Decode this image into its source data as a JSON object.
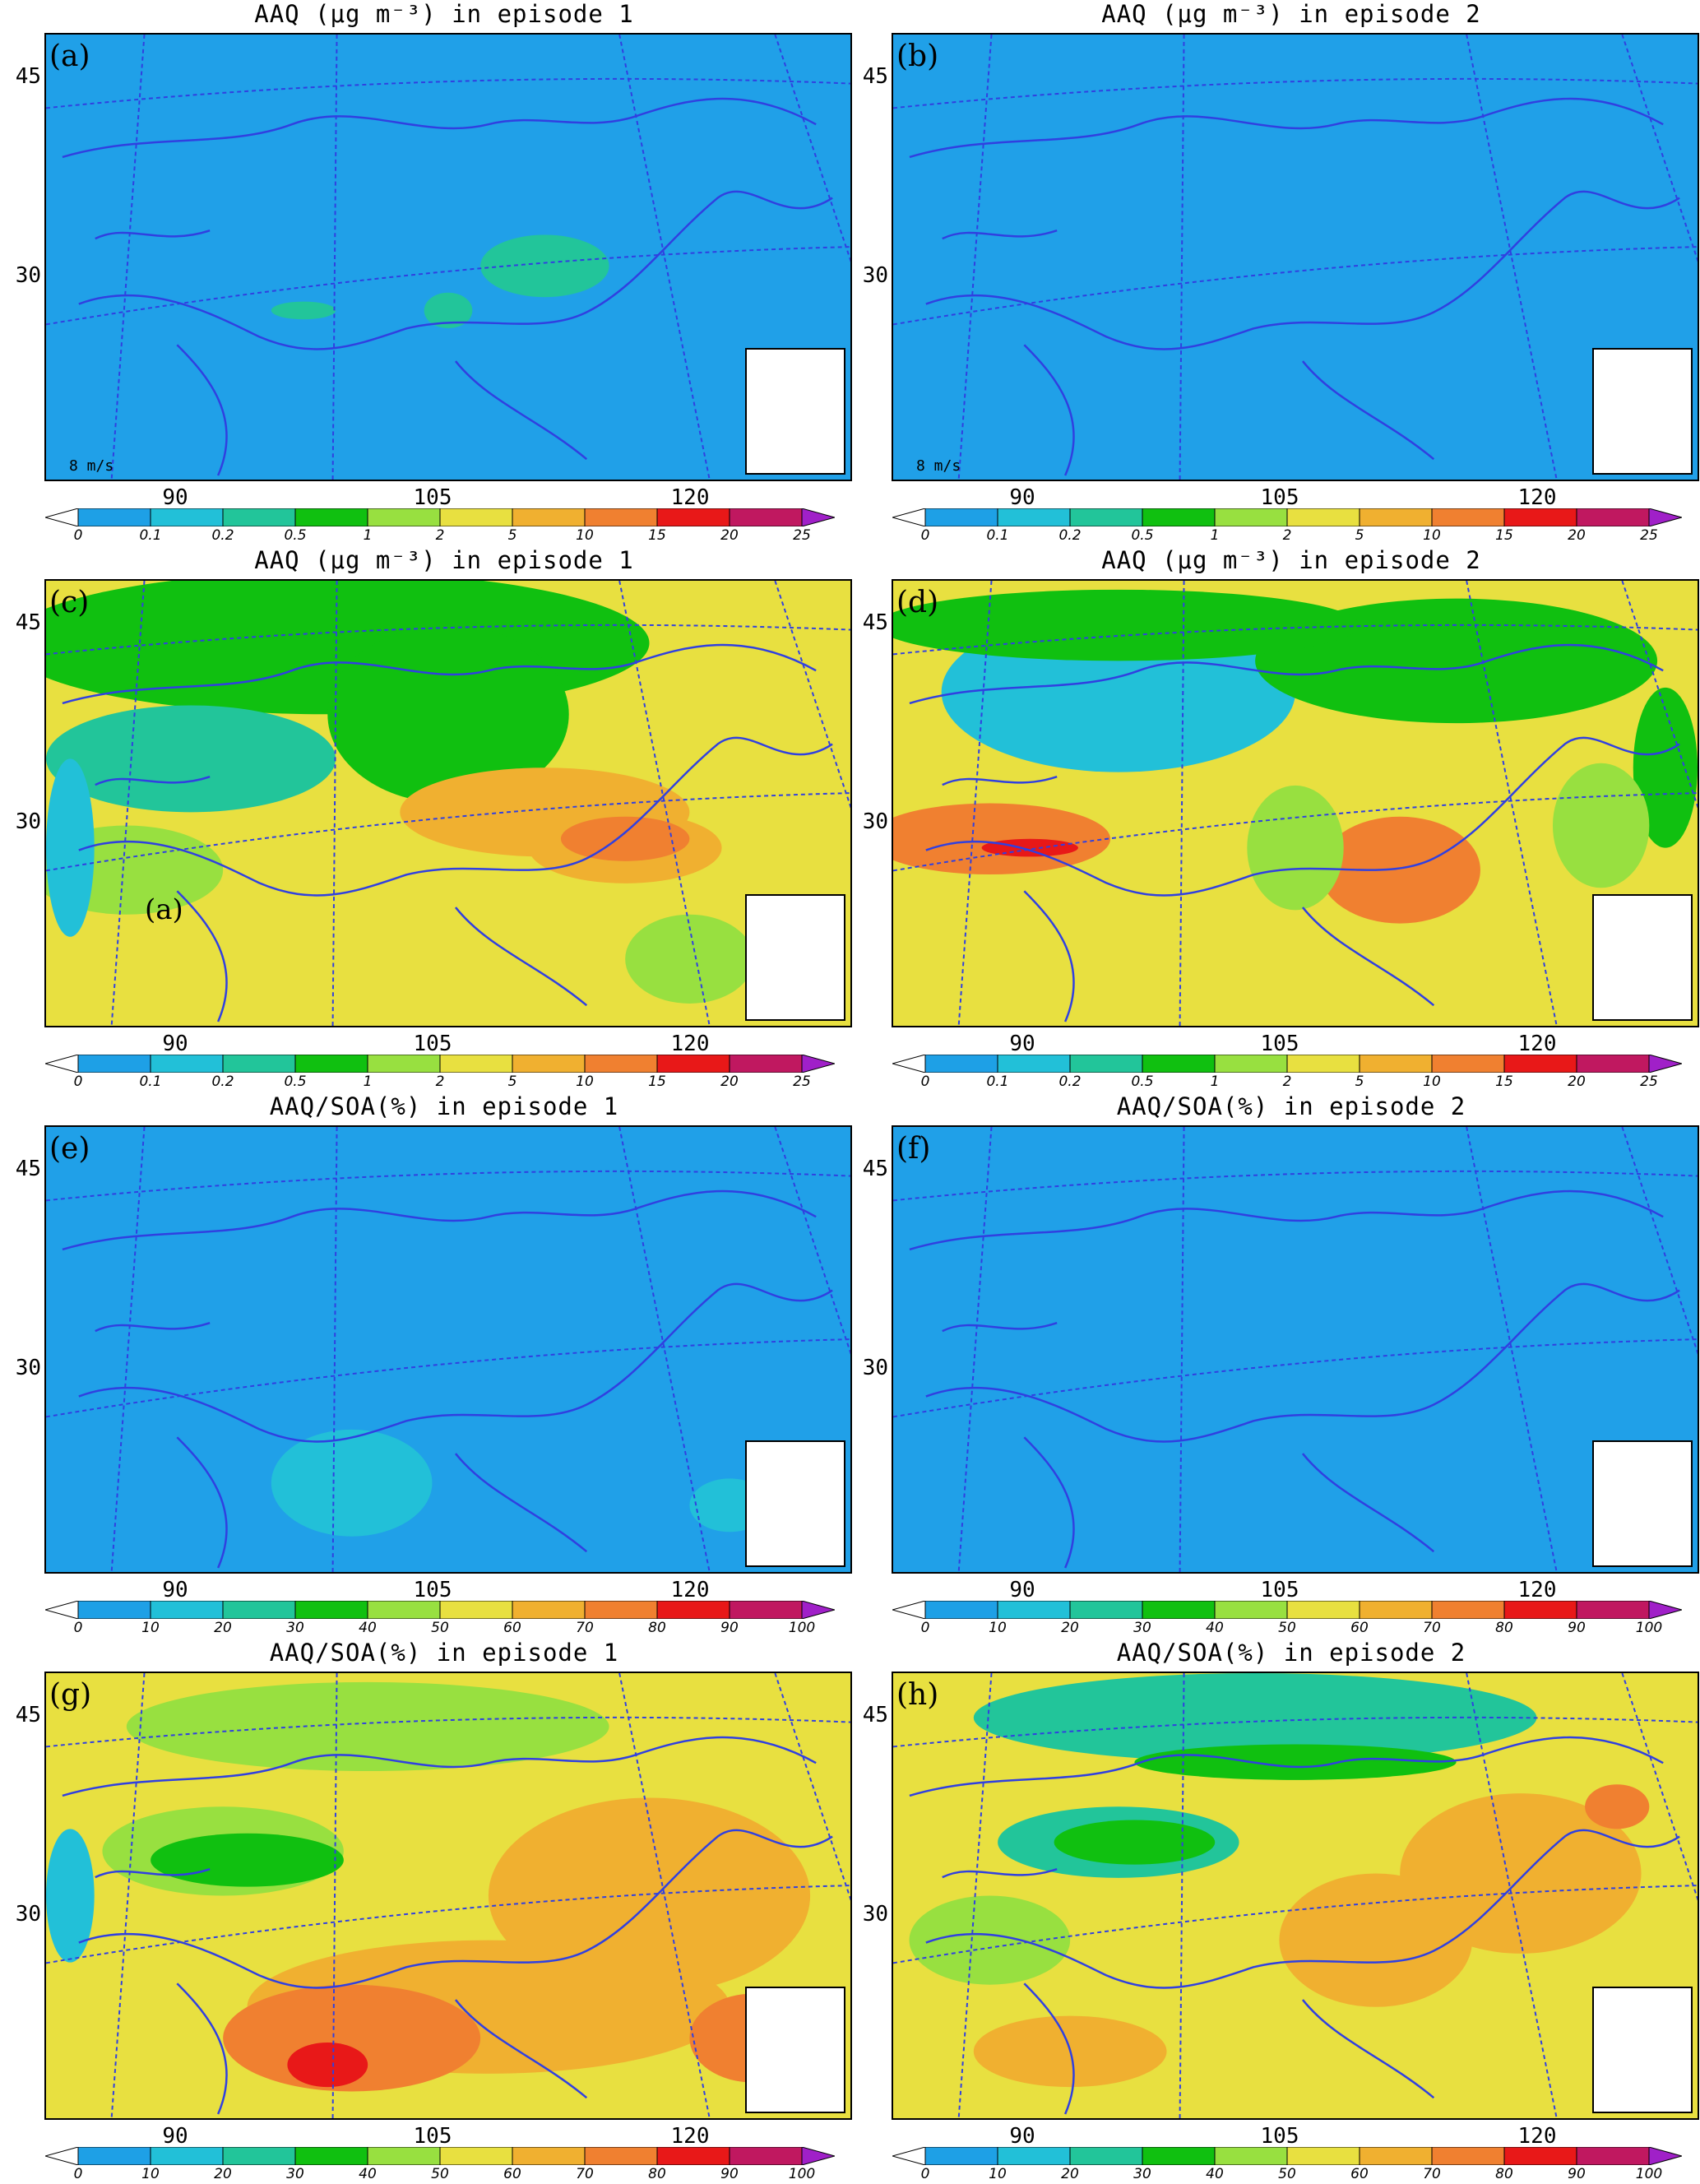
{
  "lat_labels": [
    "45",
    "30"
  ],
  "lon_labels": [
    "90",
    "105",
    "120"
  ],
  "conc_ticks": [
    "0",
    "0.1",
    "0.2",
    "0.5",
    "1",
    "2",
    "5",
    "10",
    "15",
    "20",
    "25"
  ],
  "pct_ticks": [
    "0",
    "10",
    "20",
    "30",
    "40",
    "50",
    "60",
    "70",
    "80",
    "90",
    "100"
  ],
  "colorbar_colors": [
    "#1ea0e6",
    "#22c0d8",
    "#22c59a",
    "#10c010",
    "#98e040",
    "#e8e040",
    "#f0b030",
    "#f08030",
    "#e81818",
    "#c01860",
    "#a020c8"
  ],
  "wind_vector": {
    "speed": "8",
    "unit": "m/s"
  },
  "panels": [
    {
      "label": "(a)",
      "title": "AAQ (μg m⁻³) in episode 1",
      "colorbar": "conc",
      "field": "low_wind",
      "fill": "#20a0e8"
    },
    {
      "label": "(b)",
      "title": "AAQ (μg m⁻³) in episode 2",
      "colorbar": "conc",
      "field": "low_wind2",
      "fill": "#20a0e8"
    },
    {
      "label": "(c)",
      "title": "AAQ (μg m⁻³) in episode 1",
      "colorbar": "conc",
      "field": "conc1",
      "fill": "#e8e040",
      "marker": "(a)"
    },
    {
      "label": "(d)",
      "title": "AAQ (μg m⁻³) in episode 2",
      "colorbar": "conc",
      "field": "conc2",
      "fill": "#e8e040"
    },
    {
      "label": "(e)",
      "title": "AAQ/SOA(%) in episode 1",
      "colorbar": "pct",
      "field": "pct_low",
      "fill": "#20a0e8"
    },
    {
      "label": "(f)",
      "title": "AAQ/SOA(%) in episode 2",
      "colorbar": "pct",
      "field": "pct_low2",
      "fill": "#20a0e8"
    },
    {
      "label": "(g)",
      "title": "AAQ/SOA(%) in episode 1",
      "colorbar": "pct",
      "field": "pct_high",
      "fill": "#e8e040"
    },
    {
      "label": "(h)",
      "title": "AAQ/SOA(%) in episode 2",
      "colorbar": "pct",
      "field": "pct_high2",
      "fill": "#e8e040"
    }
  ]
}
